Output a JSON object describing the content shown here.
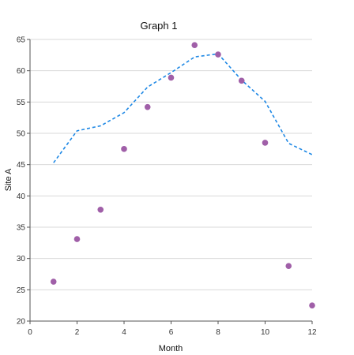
{
  "chart_data": {
    "type": "scatter",
    "title": "Graph 1",
    "xlabel": "Month",
    "ylabel": "Site A",
    "xlim": [
      0,
      12
    ],
    "ylim": [
      20,
      65
    ],
    "x_ticks": [
      0,
      2,
      4,
      6,
      8,
      10,
      12
    ],
    "y_ticks": [
      20,
      25,
      30,
      35,
      40,
      45,
      50,
      55,
      60,
      65
    ],
    "grid": "horizontal",
    "legend": "none",
    "series": [
      {
        "style": "markers",
        "color": "#a05fa8",
        "points": [
          {
            "x": 1,
            "y": 26.3
          },
          {
            "x": 2,
            "y": 33.1
          },
          {
            "x": 3,
            "y": 37.8
          },
          {
            "x": 4,
            "y": 47.5
          },
          {
            "x": 5,
            "y": 54.2
          },
          {
            "x": 6,
            "y": 58.9
          },
          {
            "x": 7,
            "y": 64.1
          },
          {
            "x": 8,
            "y": 62.6
          },
          {
            "x": 9,
            "y": 58.4
          },
          {
            "x": 10,
            "y": 48.5
          },
          {
            "x": 11,
            "y": 28.8
          },
          {
            "x": 12,
            "y": 22.5
          }
        ]
      },
      {
        "style": "dashed-line",
        "color": "#1e88e5",
        "points": [
          {
            "x": 1,
            "y": 45.3
          },
          {
            "x": 2,
            "y": 50.4
          },
          {
            "x": 3,
            "y": 51.2
          },
          {
            "x": 4,
            "y": 53.3
          },
          {
            "x": 5,
            "y": 57.4
          },
          {
            "x": 6,
            "y": 59.7
          },
          {
            "x": 7,
            "y": 62.2
          },
          {
            "x": 8,
            "y": 62.7
          },
          {
            "x": 9,
            "y": 58.5
          },
          {
            "x": 10,
            "y": 55.1
          },
          {
            "x": 11,
            "y": 48.4
          },
          {
            "x": 12,
            "y": 46.6
          }
        ]
      }
    ]
  }
}
